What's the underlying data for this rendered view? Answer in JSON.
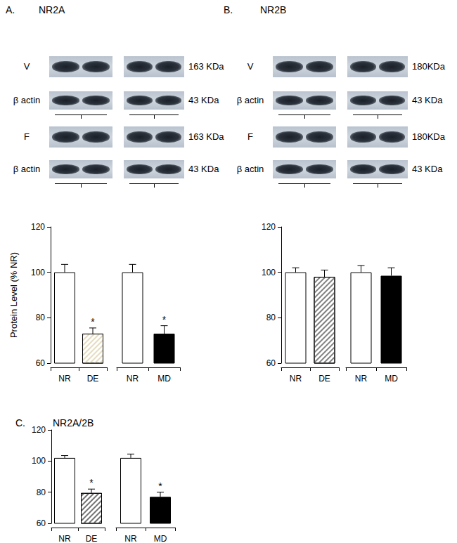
{
  "panels": [
    {
      "label": "A.",
      "title": "NR2A",
      "blots": [
        {
          "row": "V",
          "size": "163 KDa"
        },
        {
          "row": "β actin",
          "size": "43 KDa"
        },
        {
          "row": "F",
          "size": "163 KDa"
        },
        {
          "row": "β actin",
          "size": "43 KDa"
        }
      ]
    },
    {
      "label": "B.",
      "title": "NR2B",
      "blots": [
        {
          "row": "V",
          "size": "180KDa"
        },
        {
          "row": "β actin",
          "size": "43 KDa"
        },
        {
          "row": "F",
          "size": "180KDa"
        },
        {
          "row": "β actin",
          "size": "43 KDa"
        }
      ]
    },
    {
      "label": "C.",
      "title": "NR2A/2B",
      "blots": []
    }
  ],
  "chart_data": [
    {
      "type": "bar",
      "ylabel": "Protein Level (% NR)",
      "categories": [
        "NR",
        "DE"
      ],
      "values": [
        100,
        73
      ],
      "errors": [
        3.5,
        2.5
      ],
      "significance": [
        null,
        "*"
      ],
      "colors": [
        "#ffffff",
        "#e6dcc0"
      ],
      "ylim": [
        60,
        120
      ],
      "yticks": [
        60,
        80,
        100,
        120
      ]
    },
    {
      "type": "bar",
      "categories": [
        "NR",
        "MD"
      ],
      "values": [
        100,
        73
      ],
      "errors": [
        3.5,
        3.5
      ],
      "significance": [
        null,
        "*"
      ],
      "colors": [
        "#ffffff",
        "#000000"
      ],
      "ylim": [
        60,
        120
      ],
      "yticks": [
        60,
        80,
        100,
        120
      ],
      "tick_labels": "x"
    },
    {
      "type": "bar",
      "categories": [
        "NR",
        "DE"
      ],
      "values": [
        100,
        98
      ],
      "errors": [
        2,
        3
      ],
      "significance": [
        null,
        null
      ],
      "colors": [
        "#ffffff",
        "#808080"
      ],
      "ylim": [
        60,
        120
      ],
      "yticks": [
        60,
        80,
        100,
        120
      ]
    },
    {
      "type": "bar",
      "categories": [
        "NR",
        "MD"
      ],
      "values": [
        100,
        98.5
      ],
      "errors": [
        3,
        3.5
      ],
      "significance": [
        null,
        null
      ],
      "colors": [
        "#ffffff",
        "#000000"
      ],
      "ylim": [
        60,
        120
      ],
      "yticks": [
        60,
        80,
        100,
        120
      ],
      "tick_labels": "x"
    },
    {
      "type": "bar",
      "categories": [
        "NR",
        "DE"
      ],
      "values": [
        102,
        79.5
      ],
      "errors": [
        1.5,
        2.5
      ],
      "significance": [
        null,
        "*"
      ],
      "colors": [
        "#ffffff",
        "#707070"
      ],
      "ylim": [
        60,
        120
      ],
      "yticks": [
        60,
        80,
        100,
        120
      ]
    },
    {
      "type": "bar",
      "categories": [
        "NR",
        "MD"
      ],
      "values": [
        102,
        77
      ],
      "errors": [
        2.5,
        3
      ],
      "significance": [
        null,
        "*"
      ],
      "colors": [
        "#ffffff",
        "#000000"
      ],
      "ylim": [
        60,
        120
      ],
      "yticks": [
        60,
        80,
        100,
        120
      ],
      "tick_labels": "x"
    }
  ]
}
